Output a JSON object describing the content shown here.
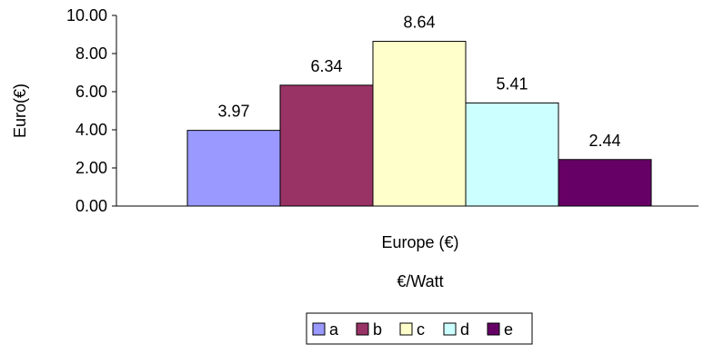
{
  "chart_data": {
    "type": "bar",
    "categories": [
      "Europe (€)"
    ],
    "series": [
      {
        "name": "a",
        "values": [
          3.97
        ],
        "color": "#9999FF"
      },
      {
        "name": "b",
        "values": [
          6.34
        ],
        "color": "#993366"
      },
      {
        "name": "c",
        "values": [
          8.64
        ],
        "color": "#FFFFCC"
      },
      {
        "name": "d",
        "values": [
          5.41
        ],
        "color": "#CCFFFF"
      },
      {
        "name": "e",
        "values": [
          2.44
        ],
        "color": "#660066"
      }
    ],
    "data_labels": [
      "3.97",
      "6.34",
      "8.64",
      "5.41",
      "2.44"
    ],
    "ylabel": "Euro(€)",
    "xlabel": "€/Watt",
    "ylim": [
      0,
      10
    ],
    "y_ticks": [
      "0.00",
      "2.00",
      "4.00",
      "6.00",
      "8.00",
      "10.00"
    ],
    "grid": false,
    "legend_position": "bottom"
  }
}
